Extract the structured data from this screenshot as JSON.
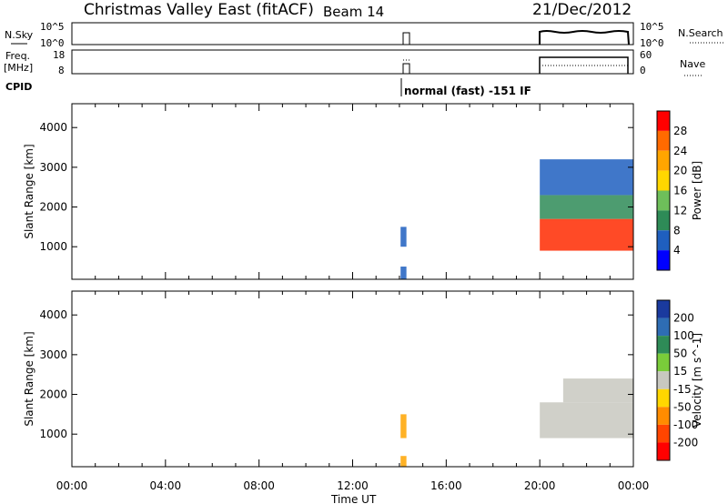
{
  "header": {
    "title": "Christmas Valley East (fitACF)",
    "beam": "Beam 14",
    "date": "21/Dec/2012"
  },
  "top_panels": {
    "nsky_label": "N.Sky",
    "nsky_ticks": [
      "10^5",
      "10^0"
    ],
    "nsearch_label": "N.Search",
    "nsearch_ticks": [
      "10^5",
      "10^0"
    ],
    "freq_label": "Freq.",
    "freq_unit": "[MHz]",
    "freq_ticks": [
      "18",
      "8"
    ],
    "nave_label": "Nave",
    "nave_ticks": [
      "60",
      "0"
    ],
    "cpid_label": "CPID",
    "cpid_text": "normal (fast) -151 IF"
  },
  "chart_data": [
    {
      "type": "heatmap",
      "name": "power-panel",
      "ylabel": "Slant Range [km]",
      "ylim": [
        180,
        4600
      ],
      "yticks": [
        1000,
        2000,
        3000,
        4000
      ],
      "xlim": [
        0,
        24
      ],
      "colorbar": {
        "label": "Power [dB]",
        "ticks": [
          "28",
          "24",
          "20",
          "16",
          "12",
          "8",
          "4"
        ],
        "colors": [
          "#ff0000",
          "#ff6a00",
          "#ffa500",
          "#ffd700",
          "#6ebf5a",
          "#2e8b57",
          "#1f5fbf",
          "#0000ff"
        ]
      },
      "blocks": [
        {
          "t0": 14.05,
          "t1": 14.3,
          "r0": 180,
          "r1": 500,
          "color": "#1f5fbf"
        },
        {
          "t0": 14.05,
          "t1": 14.3,
          "r0": 1000,
          "r1": 1500,
          "color": "#1f5fbf"
        },
        {
          "t0": 20.0,
          "t1": 24.0,
          "r0": 900,
          "r1": 1700,
          "color": "#ff2a00"
        },
        {
          "t0": 20.0,
          "t1": 24.0,
          "r0": 1700,
          "r1": 2300,
          "color": "#2e8b57"
        },
        {
          "t0": 20.0,
          "t1": 24.0,
          "r0": 2300,
          "r1": 3200,
          "color": "#1f5fbf"
        }
      ]
    },
    {
      "type": "heatmap",
      "name": "velocity-panel",
      "ylabel": "Slant Range [km]",
      "ylim": [
        180,
        4600
      ],
      "yticks": [
        1000,
        2000,
        3000,
        4000
      ],
      "xlim": [
        0,
        24
      ],
      "colorbar": {
        "label": "Velocity [m s^-1]",
        "ticks": [
          "200",
          "100",
          "50",
          "15",
          "-15",
          "-50",
          "-100",
          "-200"
        ],
        "colors": [
          "#1a3a9e",
          "#2e6db4",
          "#2e8b57",
          "#7acc3a",
          "#c8c8c0",
          "#ffd700",
          "#ff8c00",
          "#ff4500",
          "#ff0000"
        ]
      },
      "blocks": [
        {
          "t0": 14.05,
          "t1": 14.3,
          "r0": 900,
          "r1": 1500,
          "color": "#ffa500"
        },
        {
          "t0": 14.05,
          "t1": 14.3,
          "r0": 180,
          "r1": 450,
          "color": "#ffa500"
        },
        {
          "t0": 20.0,
          "t1": 24.0,
          "r0": 900,
          "r1": 1800,
          "color": "#c8c8c0"
        },
        {
          "t0": 21.0,
          "t1": 24.0,
          "r0": 1800,
          "r1": 2400,
          "color": "#c8c8c0"
        }
      ]
    }
  ],
  "x_axis": {
    "ticks": [
      "00:00",
      "04:00",
      "08:00",
      "12:00",
      "16:00",
      "20:00",
      "00:00"
    ],
    "label": "Time UT"
  }
}
